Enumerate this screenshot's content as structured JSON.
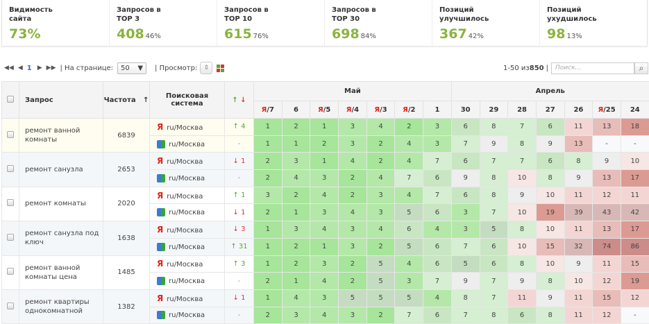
{
  "stats": [
    {
      "label": "Видимость\nсайта",
      "value": "73%",
      "pct": ""
    },
    {
      "label": "Запросов в\nTOP 3",
      "value": "408",
      "pct": "46%"
    },
    {
      "label": "Запросов в\nTOP 10",
      "value": "615",
      "pct": "76%"
    },
    {
      "label": "Запросов в\nTOP 30",
      "value": "698",
      "pct": "84%"
    },
    {
      "label": "Позиций\nулучшилось",
      "value": "367",
      "pct": "42%"
    },
    {
      "label": "Позиций\nухудшилось",
      "value": "98",
      "pct": "13%"
    }
  ],
  "toolbar": {
    "first": "◀◀",
    "prev": "◀",
    "page": "1",
    "next": "▶",
    "last": "▶▶",
    "per_page_label": "| На странице:",
    "per_page": "50",
    "view_label": "| Просмотр:",
    "range": "1-50 из ",
    "total": "850",
    "sep": "|",
    "search_placeholder": "Поиск..."
  },
  "table": {
    "headers": {
      "query": "Запрос",
      "freq": "Частота",
      "freq_sort": "↑",
      "engine": "Поисковая система",
      "change_up": "↑",
      "change_down": "↓"
    },
    "months": [
      {
        "name": "Май",
        "span": 7
      },
      {
        "name": "Апрель",
        "span": 7
      }
    ],
    "days": [
      {
        "d": "/7",
        "ya": true
      },
      {
        "d": "6",
        "ya": false
      },
      {
        "d": "/5",
        "ya": true
      },
      {
        "d": "/4",
        "ya": true
      },
      {
        "d": "/3",
        "ya": true
      },
      {
        "d": "/2",
        "ya": true
      },
      {
        "d": "1",
        "ya": false
      },
      {
        "d": "30",
        "ya": false
      },
      {
        "d": "29",
        "ya": false
      },
      {
        "d": "28",
        "ya": false
      },
      {
        "d": "27",
        "ya": false
      },
      {
        "d": "26",
        "ya": false
      },
      {
        "d": "/25",
        "ya": true
      },
      {
        "d": "24",
        "ya": false
      }
    ],
    "ya_letter": "Я",
    "rows": [
      {
        "query": "ремонт ванной комнаты",
        "freq": "6839",
        "engines": [
          {
            "engine": "yandex",
            "region": "ru/Москва",
            "change": "↑ 4",
            "dir": "up",
            "pos": [
              "1",
              "2",
              "1",
              "3",
              "4",
              "2",
              "3",
              "6",
              "8",
              "7",
              "6",
              "11",
              "13",
              "18"
            ]
          },
          {
            "engine": "google",
            "region": "ru/Москва",
            "change": "-",
            "dir": "none",
            "pos": [
              "1",
              "1",
              "2",
              "3",
              "2",
              "4",
              "3",
              "7",
              "9",
              "8",
              "9",
              "13",
              "-",
              "-"
            ]
          }
        ]
      },
      {
        "query": "ремонт санузла",
        "freq": "2653",
        "engines": [
          {
            "engine": "yandex",
            "region": "ru/Москва",
            "change": "↓ 1",
            "dir": "down",
            "pos": [
              "2",
              "3",
              "1",
              "4",
              "2",
              "4",
              "7",
              "6",
              "7",
              "7",
              "6",
              "8",
              "9",
              "10"
            ]
          },
          {
            "engine": "google",
            "region": "ru/Москва",
            "change": "-",
            "dir": "none",
            "pos": [
              "2",
              "4",
              "3",
              "2",
              "4",
              "7",
              "6",
              "9",
              "8",
              "10",
              "8",
              "9",
              "13",
              "17"
            ]
          }
        ]
      },
      {
        "query": "ремонт комнаты",
        "freq": "2020",
        "engines": [
          {
            "engine": "yandex",
            "region": "ru/Москва",
            "change": "↑ 1",
            "dir": "up",
            "pos": [
              "3",
              "2",
              "4",
              "2",
              "3",
              "4",
              "7",
              "6",
              "8",
              "9",
              "10",
              "11",
              "12",
              "11"
            ]
          },
          {
            "engine": "google",
            "region": "ru/Москва",
            "change": "↓ 1",
            "dir": "down",
            "pos": [
              "2",
              "1",
              "3",
              "4",
              "3",
              "5",
              "6",
              "3",
              "7",
              "10",
              "19",
              "39",
              "43",
              "42"
            ]
          }
        ]
      },
      {
        "query": "ремонт санузла под ключ",
        "freq": "1638",
        "engines": [
          {
            "engine": "yandex",
            "region": "ru/Москва",
            "change": "↓ 3",
            "dir": "down",
            "pos": [
              "1",
              "3",
              "4",
              "3",
              "4",
              "6",
              "4",
              "3",
              "5",
              "8",
              "10",
              "11",
              "13",
              "17"
            ]
          },
          {
            "engine": "google",
            "region": "ru/Москва",
            "change": "↑ 31",
            "dir": "up",
            "pos": [
              "1",
              "2",
              "1",
              "3",
              "2",
              "5",
              "6",
              "7",
              "6",
              "10",
              "15",
              "32",
              "74",
              "86"
            ]
          }
        ]
      },
      {
        "query": "ремонт ванной комнаты цена",
        "freq": "1485",
        "engines": [
          {
            "engine": "yandex",
            "region": "ru/Москва",
            "change": "↑ 3",
            "dir": "up",
            "pos": [
              "1",
              "2",
              "3",
              "2",
              "5",
              "4",
              "6",
              "5",
              "6",
              "8",
              "10",
              "9",
              "11",
              "15"
            ]
          },
          {
            "engine": "google",
            "region": "ru/Москва",
            "change": "-",
            "dir": "none",
            "pos": [
              "2",
              "1",
              "4",
              "2",
              "5",
              "3",
              "7",
              "9",
              "7",
              "9",
              "8",
              "10",
              "12",
              "19"
            ]
          }
        ]
      },
      {
        "query": "ремонт квартиры однокомнатной",
        "freq": "1382",
        "engines": [
          {
            "engine": "yandex",
            "region": "ru/Москва",
            "change": "↓ 1",
            "dir": "down",
            "pos": [
              "1",
              "4",
              "3",
              "5",
              "5",
              "5",
              "4",
              "8",
              "7",
              "11",
              "9",
              "11",
              "15",
              "12"
            ]
          },
          {
            "engine": "google",
            "region": "ru/Москва",
            "change": "-",
            "dir": "none",
            "pos": [
              "2",
              "3",
              "4",
              "3",
              "2",
              "7",
              "6",
              "7",
              "8",
              "6",
              "8",
              "11",
              "12",
              "-"
            ]
          }
        ]
      }
    ]
  },
  "colors": {
    "accent": "#8bb33f",
    "up": "#5da434",
    "down": "#dd3333",
    "yandex": "#e2231a"
  }
}
